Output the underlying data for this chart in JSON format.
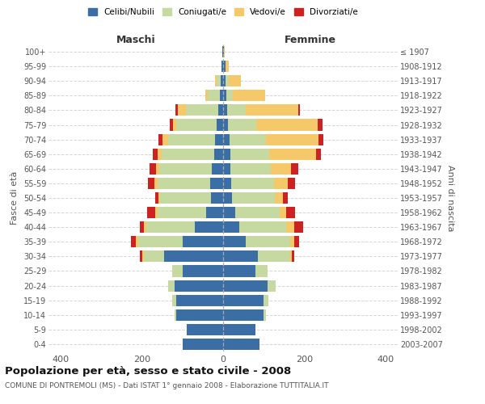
{
  "age_groups": [
    "0-4",
    "5-9",
    "10-14",
    "15-19",
    "20-24",
    "25-29",
    "30-34",
    "35-39",
    "40-44",
    "45-49",
    "50-54",
    "55-59",
    "60-64",
    "65-69",
    "70-74",
    "75-79",
    "80-84",
    "85-89",
    "90-94",
    "95-99",
    "100+"
  ],
  "birth_years": [
    "2003-2007",
    "1998-2002",
    "1993-1997",
    "1988-1992",
    "1983-1987",
    "1978-1982",
    "1973-1977",
    "1968-1972",
    "1963-1967",
    "1958-1962",
    "1953-1957",
    "1948-1952",
    "1943-1947",
    "1938-1942",
    "1933-1937",
    "1928-1932",
    "1923-1927",
    "1918-1922",
    "1913-1917",
    "1908-1912",
    "≤ 1907"
  ],
  "male": {
    "celibi": [
      100,
      90,
      115,
      115,
      120,
      100,
      145,
      100,
      70,
      42,
      30,
      32,
      28,
      22,
      20,
      15,
      12,
      8,
      5,
      3,
      2
    ],
    "coniugati": [
      0,
      0,
      5,
      10,
      15,
      25,
      50,
      110,
      120,
      120,
      125,
      130,
      130,
      130,
      115,
      100,
      80,
      30,
      10,
      0,
      0
    ],
    "vedovi": [
      0,
      0,
      0,
      0,
      0,
      0,
      5,
      5,
      5,
      5,
      5,
      8,
      8,
      10,
      15,
      8,
      20,
      5,
      5,
      0,
      0
    ],
    "divorziati": [
      0,
      0,
      0,
      0,
      0,
      0,
      5,
      12,
      10,
      20,
      8,
      15,
      15,
      12,
      10,
      8,
      5,
      0,
      0,
      0,
      0
    ]
  },
  "female": {
    "nubili": [
      90,
      80,
      100,
      100,
      110,
      80,
      85,
      55,
      40,
      30,
      22,
      20,
      18,
      18,
      15,
      12,
      10,
      8,
      5,
      5,
      2
    ],
    "coniugate": [
      0,
      0,
      5,
      12,
      20,
      30,
      80,
      110,
      115,
      110,
      105,
      105,
      100,
      95,
      90,
      70,
      45,
      15,
      8,
      0,
      0
    ],
    "vedove": [
      0,
      0,
      0,
      0,
      0,
      0,
      5,
      10,
      20,
      15,
      20,
      35,
      50,
      115,
      130,
      150,
      130,
      80,
      30,
      8,
      2
    ],
    "divorziate": [
      0,
      0,
      0,
      0,
      0,
      0,
      5,
      12,
      22,
      22,
      12,
      18,
      18,
      12,
      12,
      12,
      5,
      0,
      0,
      0,
      0
    ]
  },
  "colors": {
    "celibi": "#3a6ea5",
    "coniugati": "#c5d9a0",
    "vedovi": "#f5c869",
    "divorziati": "#cc2222"
  },
  "title": "Popolazione per età, sesso e stato civile - 2008",
  "subtitle": "COMUNE DI PONTREMOLI (MS) - Dati ISTAT 1° gennaio 2008 - Elaborazione TUTTITALIA.IT",
  "xlabel_left": "Maschi",
  "xlabel_right": "Femmine",
  "ylabel_left": "Fasce di età",
  "ylabel_right": "Anni di nascita",
  "xlim": 430,
  "legend_labels": [
    "Celibi/Nubili",
    "Coniugati/e",
    "Vedovi/e",
    "Divorziati/e"
  ],
  "background_color": "#ffffff",
  "grid_color": "#cccccc"
}
